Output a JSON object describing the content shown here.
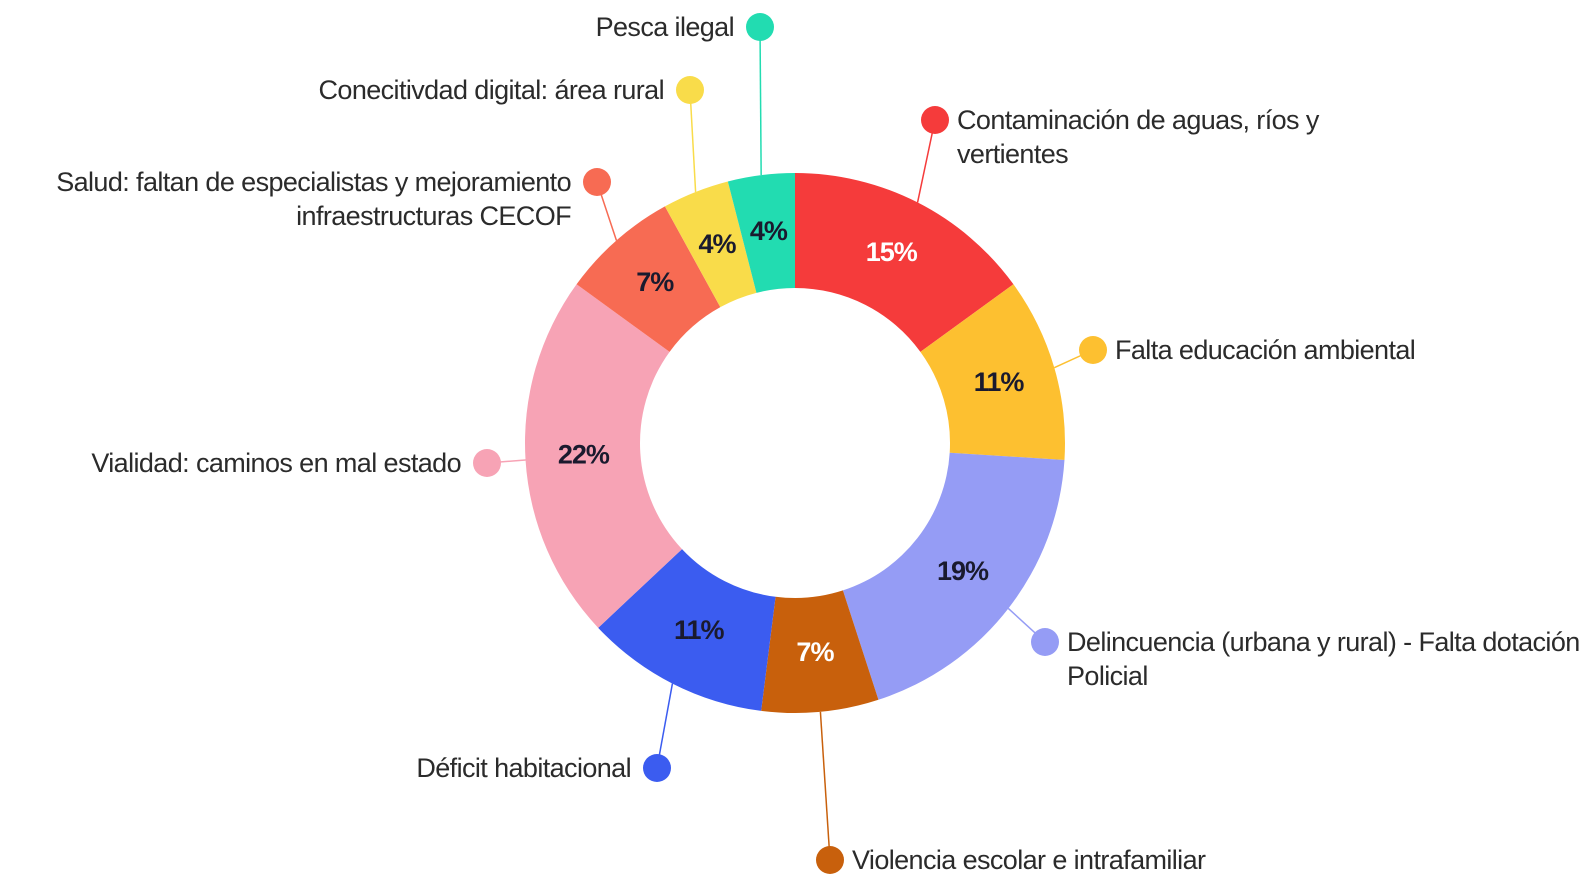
{
  "chart_data": {
    "type": "donut",
    "categories": [
      "Contaminación de aguas, ríos y vertientes",
      "Falta educación ambiental",
      "Delincuencia (urbana y rural) - Falta dotación Policial",
      "Violencia escolar e intrafamiliar",
      "Déficit habitacional",
      "Vialidad: caminos en mal estado",
      "Salud: faltan de especialistas y mejoramiento infraestructuras CECOF",
      "Conecitivdad digital: área rural",
      "Pesca ilegal"
    ],
    "values": [
      15,
      11,
      19,
      7,
      11,
      22,
      7,
      4,
      4
    ],
    "value_labels": [
      "15%",
      "11%",
      "19%",
      "7%",
      "11%",
      "22%",
      "7%",
      "4%",
      "4%"
    ],
    "colors": [
      "#f53b3b",
      "#fdc030",
      "#959cf5",
      "#c8600c",
      "#3b5cf0",
      "#f7a3b5",
      "#f76b53",
      "#f9dc4a",
      "#22dcb1"
    ]
  }
}
